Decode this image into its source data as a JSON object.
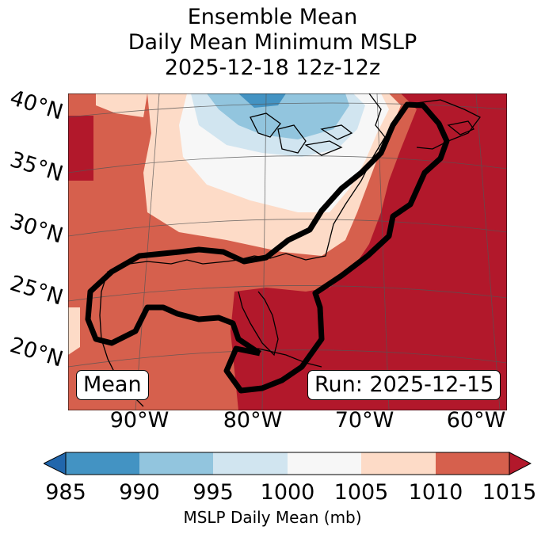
{
  "title": {
    "line1": "Ensemble Mean",
    "line2": "Daily Mean Minimum MSLP",
    "line3": "2025-12-18 12z-12z"
  },
  "map": {
    "lat_labels": [
      "40°N",
      "35°N",
      "30°N",
      "25°N",
      "20°N"
    ],
    "lon_labels": [
      "90°W",
      "80°W",
      "70°W",
      "60°W"
    ],
    "mean_label": "Mean",
    "run_label": "Run: 2025-12-15"
  },
  "colorbar": {
    "label": "MSLP Daily Mean (mb)",
    "ticks": [
      "985",
      "990",
      "995",
      "1000",
      "1005",
      "1010",
      "1015"
    ],
    "colors": [
      "#2166ac",
      "#4393c3",
      "#92c5de",
      "#d1e5f0",
      "#f7f7f7",
      "#fddbc7",
      "#d6604d",
      "#b2182b"
    ]
  }
}
